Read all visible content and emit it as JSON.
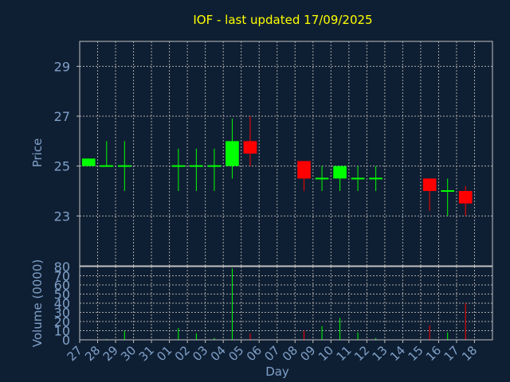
{
  "chart_data": {
    "type": "candlestick",
    "title": "IOF - last updated 17/09/2025",
    "xlabel": "Day",
    "categories": [
      "27",
      "28",
      "29",
      "30",
      "31",
      "01",
      "02",
      "03",
      "04",
      "05",
      "06",
      "07",
      "08",
      "09",
      "10",
      "11",
      "12",
      "13",
      "14",
      "15",
      "16",
      "17",
      "18"
    ],
    "price": {
      "ylabel": "Price",
      "ylim": [
        21.0,
        30.0
      ],
      "yticks": [
        23,
        25,
        27,
        29
      ],
      "candles": [
        {
          "x": "27",
          "open": 25.0,
          "high": 25.3,
          "low": 25.0,
          "close": 25.3
        },
        {
          "x": "28",
          "open": 25.0,
          "high": 26.0,
          "low": 25.0,
          "close": 25.0
        },
        {
          "x": "29",
          "open": 25.0,
          "high": 26.0,
          "low": 24.0,
          "close": 25.0
        },
        {
          "x": "01",
          "open": 25.0,
          "high": 25.7,
          "low": 24.0,
          "close": 25.0
        },
        {
          "x": "02",
          "open": 25.0,
          "high": 25.7,
          "low": 24.0,
          "close": 25.0
        },
        {
          "x": "03",
          "open": 25.0,
          "high": 25.7,
          "low": 24.0,
          "close": 25.0
        },
        {
          "x": "04",
          "open": 25.0,
          "high": 26.9,
          "low": 24.5,
          "close": 26.0
        },
        {
          "x": "05",
          "open": 26.0,
          "high": 27.0,
          "low": 25.0,
          "close": 25.5
        },
        {
          "x": "08",
          "open": 25.2,
          "high": 25.2,
          "low": 24.0,
          "close": 24.5
        },
        {
          "x": "09",
          "open": 24.5,
          "high": 25.0,
          "low": 24.0,
          "close": 24.5
        },
        {
          "x": "10",
          "open": 24.5,
          "high": 25.0,
          "low": 24.0,
          "close": 25.0
        },
        {
          "x": "11",
          "open": 24.5,
          "high": 25.0,
          "low": 24.0,
          "close": 24.5
        },
        {
          "x": "12",
          "open": 24.5,
          "high": 25.0,
          "low": 24.0,
          "close": 24.5
        },
        {
          "x": "15",
          "open": 24.5,
          "high": 24.5,
          "low": 23.2,
          "close": 24.0
        },
        {
          "x": "16",
          "open": 24.0,
          "high": 24.5,
          "low": 23.0,
          "close": 24.0
        },
        {
          "x": "17",
          "open": 24.0,
          "high": 24.2,
          "low": 23.0,
          "close": 23.5
        }
      ]
    },
    "volume": {
      "ylabel": "Volume (0000)",
      "ylim": [
        0,
        80
      ],
      "yticks": [
        0,
        10,
        20,
        30,
        40,
        50,
        60,
        70,
        80
      ],
      "bars": [
        {
          "x": "28",
          "value": 1,
          "direction": "up"
        },
        {
          "x": "29",
          "value": 10,
          "direction": "up"
        },
        {
          "x": "01",
          "value": 13,
          "direction": "up"
        },
        {
          "x": "02",
          "value": 7,
          "direction": "up"
        },
        {
          "x": "03",
          "value": 2,
          "direction": "up"
        },
        {
          "x": "04",
          "value": 78,
          "direction": "up"
        },
        {
          "x": "05",
          "value": 7,
          "direction": "down"
        },
        {
          "x": "08",
          "value": 10,
          "direction": "down"
        },
        {
          "x": "09",
          "value": 15,
          "direction": "up"
        },
        {
          "x": "10",
          "value": 24,
          "direction": "up"
        },
        {
          "x": "11",
          "value": 8,
          "direction": "up"
        },
        {
          "x": "12",
          "value": 2,
          "direction": "up"
        },
        {
          "x": "15",
          "value": 16,
          "direction": "down"
        },
        {
          "x": "16",
          "value": 8,
          "direction": "up"
        },
        {
          "x": "17",
          "value": 40,
          "direction": "down"
        }
      ]
    },
    "grid": true,
    "colors": {
      "background": "#0f1f33",
      "title": "#ffff00",
      "axis_text": "#7fa0c8",
      "axis_line": "#c0c0c0",
      "grid": "#a8a8a8",
      "up": "#00ff00",
      "down": "#ff0000"
    }
  }
}
